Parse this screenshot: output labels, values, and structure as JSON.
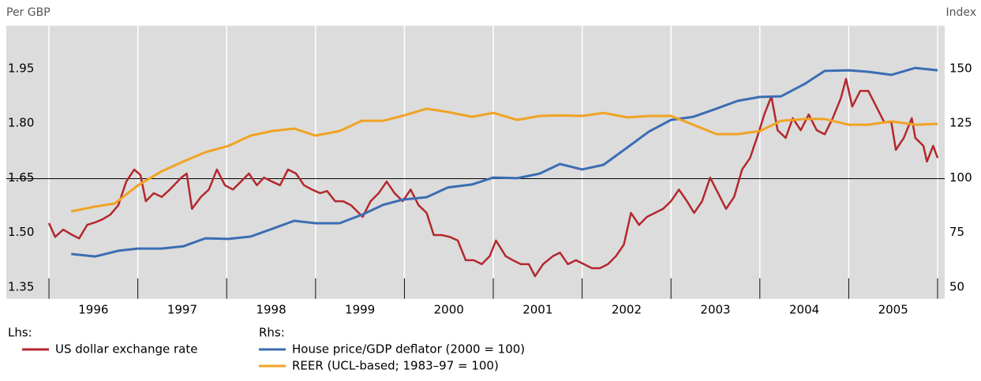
{
  "chart_data": {
    "type": "line",
    "y_axis_label": "Per GBP",
    "y2_axis_label": "Index",
    "lhs_label": "Lhs:",
    "rhs_label": "Rhs:",
    "xlim": [
      1995.52,
      2006.08
    ],
    "ylim": [
      1.32,
      2.07
    ],
    "y2lim": [
      45,
      170
    ],
    "yticks": [
      1.35,
      {
        "value": 1.5,
        "label": "1.50"
      },
      1.65,
      {
        "value": 1.8,
        "label": "1.80"
      },
      1.95
    ],
    "y2ticks": [
      50,
      75,
      100,
      125,
      150
    ],
    "xticks": [
      {
        "value": 1996.5,
        "label": "1996"
      },
      {
        "value": 1997.5,
        "label": "1997"
      },
      {
        "value": 1998.5,
        "label": "1998"
      },
      {
        "value": 1999.5,
        "label": "1999"
      },
      {
        "value": 2000.5,
        "label": "2000"
      },
      {
        "value": 2001.5,
        "label": "2001"
      },
      {
        "value": 2002.5,
        "label": "2002"
      },
      {
        "value": 2003.5,
        "label": "2003"
      },
      {
        "value": 2004.5,
        "label": "2004"
      },
      {
        "value": 2005.5,
        "label": "2005"
      }
    ],
    "year_boundaries": [
      1996,
      1997,
      1998,
      1999,
      2000,
      2001,
      2002,
      2003,
      2004,
      2005,
      2006
    ],
    "reference_line": 1.65,
    "grid": true,
    "series": [
      {
        "name": "US dollar exchange rate",
        "color": "#b3282d",
        "axis": "y",
        "x": [
          1996.0,
          1996.07,
          1996.16,
          1996.25,
          1996.34,
          1996.43,
          1996.52,
          1996.6,
          1996.69,
          1996.78,
          1996.87,
          1996.96,
          1997.03,
          1997.09,
          1997.18,
          1997.27,
          1997.36,
          1997.49,
          1997.55,
          1997.61,
          1997.71,
          1997.8,
          1997.89,
          1997.98,
          1998.07,
          1998.16,
          1998.25,
          1998.34,
          1998.42,
          1998.51,
          1998.6,
          1998.69,
          1998.78,
          1998.87,
          1998.96,
          1999.05,
          1999.13,
          1999.22,
          1999.31,
          1999.4,
          1999.53,
          1999.62,
          1999.71,
          1999.8,
          1999.89,
          1999.98,
          2000.07,
          2000.16,
          2000.25,
          2000.33,
          2000.42,
          2000.51,
          2000.6,
          2000.69,
          2000.78,
          2000.87,
          2000.96,
          2001.03,
          2001.14,
          2001.22,
          2001.31,
          2001.4,
          2001.47,
          2001.56,
          2001.67,
          2001.75,
          2001.84,
          2001.93,
          2002.02,
          2002.11,
          2002.2,
          2002.29,
          2002.38,
          2002.47,
          2002.55,
          2002.64,
          2002.73,
          2002.82,
          2002.91,
          2003.0,
          2003.09,
          2003.18,
          2003.26,
          2003.35,
          2003.44,
          2003.53,
          2003.62,
          2003.71,
          2003.8,
          2003.89,
          2003.98,
          2004.05,
          2004.13,
          2004.2,
          2004.29,
          2004.37,
          2004.46,
          2004.55,
          2004.64,
          2004.73,
          2004.82,
          2004.91,
          2004.97,
          2005.04,
          2005.13,
          2005.22,
          2005.31,
          2005.4,
          2005.48,
          2005.53,
          2005.62,
          2005.71,
          2005.75,
          2005.84,
          2005.88,
          2005.95,
          2006.0
        ],
        "values": [
          1.528,
          1.49,
          1.51,
          1.497,
          1.486,
          1.523,
          1.53,
          1.538,
          1.551,
          1.577,
          1.642,
          1.675,
          1.66,
          1.588,
          1.61,
          1.6,
          1.62,
          1.653,
          1.664,
          1.567,
          1.6,
          1.62,
          1.675,
          1.632,
          1.62,
          1.642,
          1.664,
          1.632,
          1.653,
          1.642,
          1.632,
          1.675,
          1.664,
          1.632,
          1.62,
          1.61,
          1.616,
          1.588,
          1.588,
          1.577,
          1.545,
          1.588,
          1.61,
          1.642,
          1.61,
          1.588,
          1.62,
          1.577,
          1.556,
          1.495,
          1.495,
          1.49,
          1.48,
          1.426,
          1.426,
          1.415,
          1.437,
          1.48,
          1.437,
          1.426,
          1.415,
          1.415,
          1.382,
          1.415,
          1.437,
          1.447,
          1.415,
          1.426,
          1.415,
          1.404,
          1.404,
          1.415,
          1.437,
          1.469,
          1.556,
          1.523,
          1.545,
          1.556,
          1.567,
          1.588,
          1.62,
          1.588,
          1.556,
          1.588,
          1.653,
          1.61,
          1.567,
          1.6,
          1.675,
          1.707,
          1.772,
          1.826,
          1.876,
          1.783,
          1.762,
          1.816,
          1.783,
          1.826,
          1.783,
          1.772,
          1.816,
          1.87,
          1.924,
          1.848,
          1.891,
          1.891,
          1.848,
          1.805,
          1.805,
          1.729,
          1.762,
          1.816,
          1.762,
          1.74,
          1.697,
          1.74,
          1.707
        ]
      },
      {
        "name": "House price/GDP deflator (2000 = 100)",
        "color": "#3b6db3",
        "axis": "y2",
        "x": [
          1996.25,
          1996.52,
          1996.78,
          1997.0,
          1997.27,
          1997.51,
          1997.76,
          1998.02,
          1998.27,
          1998.51,
          1998.76,
          1999.0,
          1999.27,
          1999.53,
          1999.76,
          1999.98,
          2000.25,
          2000.49,
          2000.76,
          2001.0,
          2001.27,
          2001.52,
          2001.75,
          2002.0,
          2002.24,
          2002.51,
          2002.75,
          2003.0,
          2003.25,
          2003.51,
          2003.75,
          2004.0,
          2004.24,
          2004.51,
          2004.73,
          2005.0,
          2005.22,
          2005.48,
          2005.75,
          2006.0
        ],
        "values": [
          65.5,
          64.4,
          67,
          68,
          68,
          69,
          72.7,
          72.4,
          73.5,
          77,
          80.7,
          79.6,
          79.6,
          83.6,
          88,
          90.4,
          91.5,
          96,
          97.3,
          100.5,
          100.2,
          102.3,
          106.7,
          104.2,
          106.3,
          114.3,
          121.5,
          126.9,
          128.3,
          132,
          135.6,
          137.4,
          137.7,
          143.5,
          149.3,
          149.6,
          148.9,
          147.5,
          150.7,
          149.6
        ]
      },
      {
        "name": "REER (UCL-based; 1983–97 = 100)",
        "color": "#f0a323",
        "axis": "y2",
        "x": [
          1996.25,
          1996.52,
          1996.74,
          1997.0,
          1997.27,
          1997.51,
          1997.76,
          1998.02,
          1998.27,
          1998.51,
          1998.76,
          1999.0,
          1999.27,
          1999.52,
          1999.76,
          2000.0,
          2000.25,
          2000.49,
          2000.76,
          2001.0,
          2001.27,
          2001.52,
          2001.75,
          2002.0,
          2002.24,
          2002.51,
          2002.75,
          2003.0,
          2003.25,
          2003.51,
          2003.75,
          2004.0,
          2004.24,
          2004.51,
          2004.73,
          2005.0,
          2005.22,
          2005.48,
          2005.75,
          2006.0
        ],
        "values": [
          85,
          87.2,
          88.6,
          96.9,
          103.4,
          107.8,
          112.1,
          115,
          119.7,
          121.8,
          122.9,
          119.7,
          121.8,
          126.5,
          126.5,
          129,
          132,
          130.5,
          128.3,
          130.1,
          126.9,
          128.7,
          129,
          128.7,
          130.1,
          128,
          128.7,
          128.7,
          124.7,
          120.4,
          120.4,
          121.8,
          126.5,
          127.3,
          127.3,
          124.7,
          124.7,
          126.2,
          124.7,
          125.1
        ]
      }
    ]
  }
}
